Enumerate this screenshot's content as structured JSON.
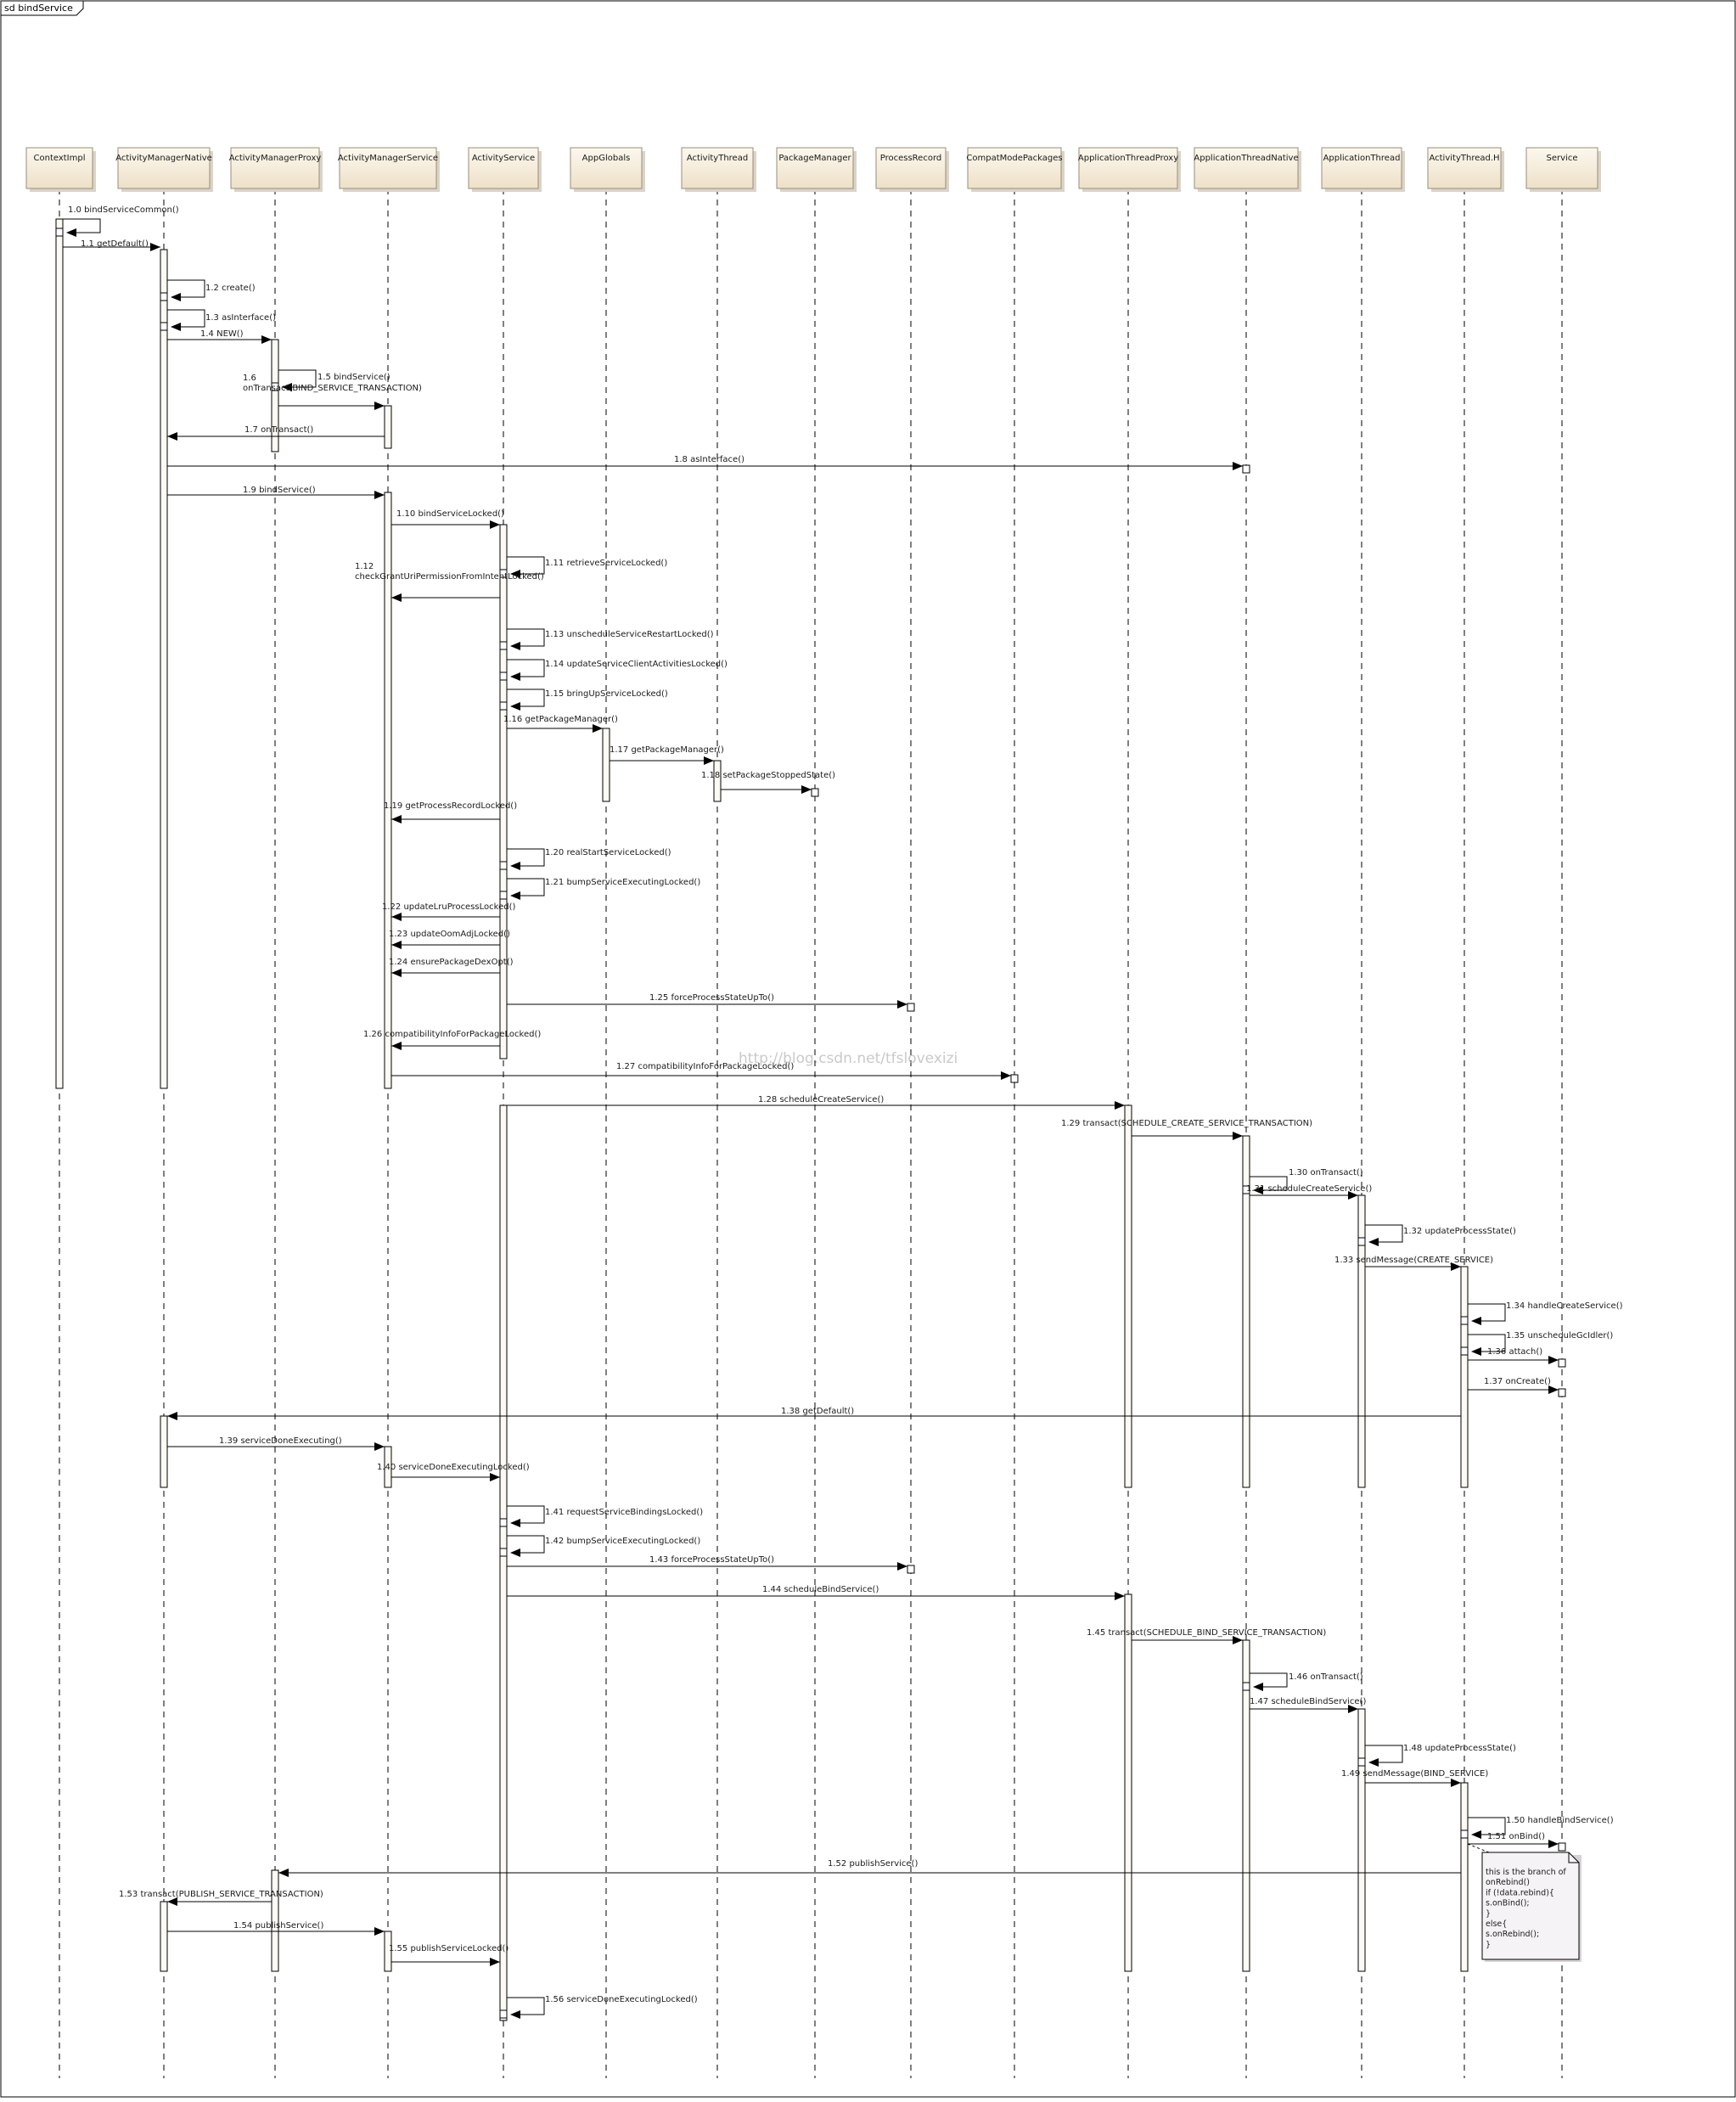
{
  "frame_title": "sd bindService",
  "watermark": "http://blog.csdn.net/tfslovexizi",
  "participants": [
    {
      "id": "contextimpl",
      "label": "ContextImpl"
    },
    {
      "id": "amn",
      "label": "ActivityManagerNative"
    },
    {
      "id": "amp",
      "label": "ActivityManagerProxy"
    },
    {
      "id": "ams",
      "label": "ActivityManagerService"
    },
    {
      "id": "as",
      "label": "ActivityService"
    },
    {
      "id": "appglobals",
      "label": "AppGlobals"
    },
    {
      "id": "at",
      "label": "ActivityThread"
    },
    {
      "id": "pm",
      "label": "PackageManager"
    },
    {
      "id": "pr",
      "label": "ProcessRecord"
    },
    {
      "id": "cmp",
      "label": "CompatModePackages"
    },
    {
      "id": "atp",
      "label": "ApplicationThreadProxy"
    },
    {
      "id": "atn",
      "label": "ApplicationThreadNative"
    },
    {
      "id": "apt",
      "label": "ApplicationThread"
    },
    {
      "id": "ath",
      "label": "ActivityThread.H"
    },
    {
      "id": "svc",
      "label": "Service"
    }
  ],
  "messages": [
    {
      "label": "1.0 bindServiceCommon()",
      "from": "contextimpl",
      "to": "contextimpl"
    },
    {
      "label": "1.1 getDefault()",
      "from": "contextimpl",
      "to": "amn"
    },
    {
      "label": "1.2 create()",
      "from": "amn",
      "to": "amn"
    },
    {
      "label": "1.3 asInterface()",
      "from": "amn",
      "to": "amn"
    },
    {
      "label": "1.4 NEW()",
      "from": "amn",
      "to": "amp"
    },
    {
      "label": "1.5 bindService()",
      "from": "amp",
      "to": "amp"
    },
    {
      "label": "1.6\nonTransact(BIND_SERVICE_TRANSACTION)",
      "from": "amp",
      "to": "ams"
    },
    {
      "label": "1.7 onTransact()",
      "from": "ams",
      "to": "amn"
    },
    {
      "label": "1.8 asInterface()",
      "from": "amn",
      "to": "atn"
    },
    {
      "label": "1.9 bindService()",
      "from": "amn",
      "to": "ams"
    },
    {
      "label": "1.10 bindServiceLocked()",
      "from": "ams",
      "to": "as"
    },
    {
      "label": "1.11 retrieveServiceLocked()",
      "from": "as",
      "to": "as"
    },
    {
      "label": "1.12\ncheckGrantUriPermissionFromIntentLocked()",
      "from": "as",
      "to": "ams"
    },
    {
      "label": "1.13 unscheduleServiceRestartLocked()",
      "from": "as",
      "to": "as"
    },
    {
      "label": "1.14 updateServiceClientActivitiesLocked()",
      "from": "as",
      "to": "as"
    },
    {
      "label": "1.15 bringUpServiceLocked()",
      "from": "as",
      "to": "as"
    },
    {
      "label": "1.16 getPackageManager()",
      "from": "as",
      "to": "appglobals"
    },
    {
      "label": "1.17 getPackageManager()",
      "from": "appglobals",
      "to": "at"
    },
    {
      "label": "1.18 setPackageStoppedState()",
      "from": "at",
      "to": "pm"
    },
    {
      "label": "1.19 getProcessRecordLocked()",
      "from": "as",
      "to": "ams"
    },
    {
      "label": "1.20 realStartServiceLocked()",
      "from": "as",
      "to": "as"
    },
    {
      "label": "1.21 bumpServiceExecutingLocked()",
      "from": "as",
      "to": "as"
    },
    {
      "label": "1.22 updateLruProcessLocked()",
      "from": "as",
      "to": "ams"
    },
    {
      "label": "1.23 updateOomAdjLocked()",
      "from": "as",
      "to": "ams"
    },
    {
      "label": "1.24 ensurePackageDexOpt()",
      "from": "as",
      "to": "ams"
    },
    {
      "label": "1.25 forceProcessStateUpTo()",
      "from": "as",
      "to": "pr"
    },
    {
      "label": "1.26 compatibilityInfoForPackageLocked()",
      "from": "as",
      "to": "ams"
    },
    {
      "label": "1.27 compatibilityInfoForPackageLocked()",
      "from": "ams",
      "to": "cmp"
    },
    {
      "label": "1.28 scheduleCreateService()",
      "from": "as",
      "to": "atp"
    },
    {
      "label": "1.29 transact(SCHEDULE_CREATE_SERVICE_TRANSACTION)",
      "from": "atp",
      "to": "atn"
    },
    {
      "label": "1.30 onTransact()",
      "from": "atn",
      "to": "atn"
    },
    {
      "label": "1.31 scheduleCreateService()",
      "from": "atn",
      "to": "apt"
    },
    {
      "label": "1.32 updateProcessState()",
      "from": "apt",
      "to": "apt"
    },
    {
      "label": "1.33 sendMessage(CREATE_SERVICE)",
      "from": "apt",
      "to": "ath"
    },
    {
      "label": "1.34 handleCreateService()",
      "from": "ath",
      "to": "ath"
    },
    {
      "label": "1.35 unscheduleGcIdler()",
      "from": "ath",
      "to": "ath"
    },
    {
      "label": "1.36 attach()",
      "from": "ath",
      "to": "svc"
    },
    {
      "label": "1.37 onCreate()",
      "from": "ath",
      "to": "svc"
    },
    {
      "label": "1.38 getDefault()",
      "from": "ath",
      "to": "amn"
    },
    {
      "label": "1.39 serviceDoneExecuting()",
      "from": "amn",
      "to": "ams"
    },
    {
      "label": "1.40 serviceDoneExecutingLocked()",
      "from": "ams",
      "to": "as"
    },
    {
      "label": "1.41 requestServiceBindingsLocked()",
      "from": "as",
      "to": "as"
    },
    {
      "label": "1.42 bumpServiceExecutingLocked()",
      "from": "as",
      "to": "as"
    },
    {
      "label": "1.43 forceProcessStateUpTo()",
      "from": "as",
      "to": "pr"
    },
    {
      "label": "1.44 scheduleBindService()",
      "from": "as",
      "to": "atp"
    },
    {
      "label": "1.45 transact(SCHEDULE_BIND_SERVICE_TRANSACTION)",
      "from": "atp",
      "to": "atn"
    },
    {
      "label": "1.46 onTransact()",
      "from": "atn",
      "to": "atn"
    },
    {
      "label": "1.47 scheduleBindService()",
      "from": "atn",
      "to": "apt"
    },
    {
      "label": "1.48 updateProcessState()",
      "from": "apt",
      "to": "apt"
    },
    {
      "label": "1.49 sendMessage(BIND_SERVICE)",
      "from": "apt",
      "to": "ath"
    },
    {
      "label": "1.50 handleBindService()",
      "from": "ath",
      "to": "ath"
    },
    {
      "label": "1.51 onBind()",
      "from": "ath",
      "to": "svc"
    },
    {
      "label": "1.52 publishService()",
      "from": "ath",
      "to": "amp"
    },
    {
      "label": "1.53 transact(PUBLISH_SERVICE_TRANSACTION)",
      "from": "amp",
      "to": "amn"
    },
    {
      "label": "1.54 publishService()",
      "from": "amn",
      "to": "ams"
    },
    {
      "label": "1.55 publishServiceLocked()",
      "from": "ams",
      "to": "as"
    },
    {
      "label": "1.56 serviceDoneExecutingLocked()",
      "from": "as",
      "to": "as"
    }
  ],
  "note": {
    "lines": [
      "this is the branch of",
      "onRebind()",
      "if (!data.rebind){",
      "    s.onBind();",
      "}",
      "else{",
      "    s.onRebind();",
      "}"
    ]
  },
  "colors": {
    "line": "#000000",
    "head_fill_top": "#fcf8ee",
    "head_fill_bottom": "#eee0c8",
    "head_border": "#9b8c74",
    "activation_fill": "#fdfaf3",
    "note_fill": "#f6f3f6",
    "text": "#1a1a1a",
    "watermark": "#b8b8b8"
  }
}
